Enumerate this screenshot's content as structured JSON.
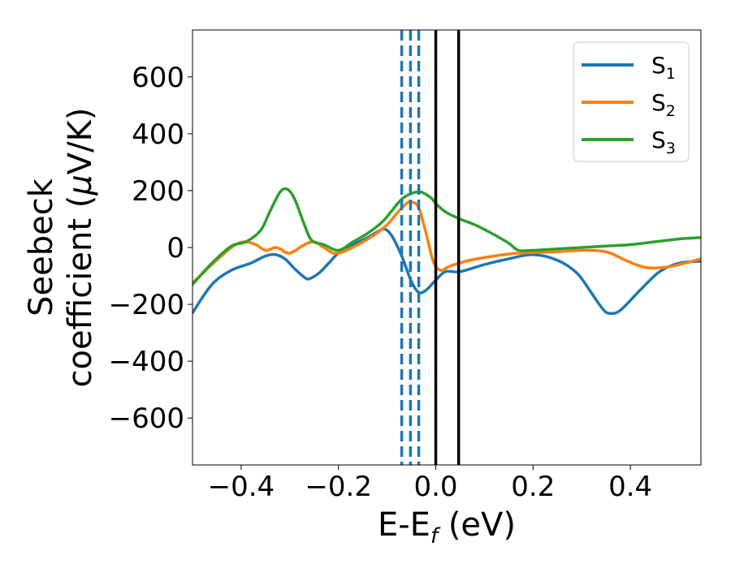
{
  "chart_data": {
    "type": "line",
    "xlabel": {
      "main": "E-E",
      "sub": "f",
      "unit": " (eV)"
    },
    "ylabel": {
      "line1": "Seebeck",
      "line2_text": "coefficient  (",
      "line2_mu": "μ",
      "line2_unit": "V/K)"
    },
    "xlim": [
      -0.5,
      0.545
    ],
    "ylim": [
      -765,
      765
    ],
    "x_ticks": [
      -0.4,
      -0.2,
      0.0,
      0.2,
      0.4
    ],
    "x_tick_labels": [
      "−0.4",
      "−0.2",
      "0.0",
      "0.2",
      "0.4"
    ],
    "y_ticks": [
      600,
      400,
      200,
      0,
      -200,
      -400,
      -600
    ],
    "y_tick_labels": [
      "600",
      "400",
      "200",
      "0",
      "−200",
      "−400",
      "−600"
    ],
    "grid": false,
    "legend_position": "top-right",
    "series": [
      {
        "name": "S",
        "sub": "1",
        "color": "#1f77b4",
        "points": [
          [
            -0.5,
            -230
          ],
          [
            -0.46,
            -130
          ],
          [
            -0.42,
            -80
          ],
          [
            -0.38,
            -55
          ],
          [
            -0.35,
            -30
          ],
          [
            -0.33,
            -25
          ],
          [
            -0.31,
            -40
          ],
          [
            -0.29,
            -75
          ],
          [
            -0.27,
            -105
          ],
          [
            -0.26,
            -110
          ],
          [
            -0.24,
            -90
          ],
          [
            -0.22,
            -55
          ],
          [
            -0.2,
            -20
          ],
          [
            -0.17,
            10
          ],
          [
            -0.14,
            35
          ],
          [
            -0.12,
            55
          ],
          [
            -0.105,
            65
          ],
          [
            -0.09,
            40
          ],
          [
            -0.07,
            -30
          ],
          [
            -0.05,
            -120
          ],
          [
            -0.035,
            -158
          ],
          [
            -0.02,
            -150
          ],
          [
            0.0,
            -115
          ],
          [
            0.02,
            -85
          ],
          [
            0.05,
            -85
          ],
          [
            0.1,
            -60
          ],
          [
            0.15,
            -40
          ],
          [
            0.2,
            -25
          ],
          [
            0.25,
            -45
          ],
          [
            0.29,
            -90
          ],
          [
            0.32,
            -160
          ],
          [
            0.345,
            -220
          ],
          [
            0.36,
            -232
          ],
          [
            0.38,
            -220
          ],
          [
            0.42,
            -150
          ],
          [
            0.46,
            -85
          ],
          [
            0.5,
            -55
          ],
          [
            0.545,
            -48
          ]
        ]
      },
      {
        "name": "S",
        "sub": "2",
        "color": "#ff7f0e",
        "points": [
          [
            -0.5,
            -125
          ],
          [
            -0.46,
            -60
          ],
          [
            -0.42,
            0
          ],
          [
            -0.395,
            20
          ],
          [
            -0.37,
            10
          ],
          [
            -0.35,
            -10
          ],
          [
            -0.33,
            0
          ],
          [
            -0.32,
            -5
          ],
          [
            -0.3,
            -20
          ],
          [
            -0.27,
            10
          ],
          [
            -0.25,
            20
          ],
          [
            -0.23,
            0
          ],
          [
            -0.21,
            -20
          ],
          [
            -0.19,
            -15
          ],
          [
            -0.16,
            10
          ],
          [
            -0.13,
            40
          ],
          [
            -0.1,
            80
          ],
          [
            -0.08,
            120
          ],
          [
            -0.06,
            155
          ],
          [
            -0.05,
            160
          ],
          [
            -0.035,
            140
          ],
          [
            -0.02,
            50
          ],
          [
            -0.005,
            -50
          ],
          [
            0.01,
            -80
          ],
          [
            0.03,
            -65
          ],
          [
            0.07,
            -45
          ],
          [
            0.12,
            -30
          ],
          [
            0.17,
            -20
          ],
          [
            0.25,
            -15
          ],
          [
            0.3,
            -10
          ],
          [
            0.35,
            -15
          ],
          [
            0.39,
            -45
          ],
          [
            0.43,
            -70
          ],
          [
            0.47,
            -70
          ],
          [
            0.5,
            -60
          ],
          [
            0.545,
            -40
          ]
        ]
      },
      {
        "name": "S",
        "sub": "3",
        "color": "#2ca02c",
        "points": [
          [
            -0.5,
            -130
          ],
          [
            -0.46,
            -55
          ],
          [
            -0.42,
            5
          ],
          [
            -0.39,
            20
          ],
          [
            -0.36,
            60
          ],
          [
            -0.34,
            130
          ],
          [
            -0.32,
            195
          ],
          [
            -0.305,
            205
          ],
          [
            -0.29,
            170
          ],
          [
            -0.27,
            80
          ],
          [
            -0.255,
            25
          ],
          [
            -0.23,
            10
          ],
          [
            -0.2,
            -10
          ],
          [
            -0.17,
            20
          ],
          [
            -0.14,
            50
          ],
          [
            -0.11,
            90
          ],
          [
            -0.09,
            130
          ],
          [
            -0.07,
            170
          ],
          [
            -0.05,
            190
          ],
          [
            -0.03,
            195
          ],
          [
            -0.01,
            175
          ],
          [
            0.0,
            155
          ],
          [
            0.02,
            125
          ],
          [
            0.05,
            100
          ],
          [
            0.08,
            80
          ],
          [
            0.12,
            45
          ],
          [
            0.15,
            15
          ],
          [
            0.17,
            -10
          ],
          [
            0.2,
            -10
          ],
          [
            0.25,
            -5
          ],
          [
            0.3,
            0
          ],
          [
            0.35,
            5
          ],
          [
            0.4,
            10
          ],
          [
            0.45,
            20
          ],
          [
            0.5,
            30
          ],
          [
            0.545,
            35
          ]
        ]
      }
    ],
    "vertical_lines": [
      {
        "x": -0.07,
        "style": "dashed",
        "color": "#1f77b4"
      },
      {
        "x": -0.052,
        "style": "dashed",
        "color": "#1f77b4"
      },
      {
        "x": -0.035,
        "style": "dashed",
        "color": "#1f77b4"
      },
      {
        "x": 0.0,
        "style": "solid",
        "color": "#000000"
      },
      {
        "x": 0.047,
        "style": "solid",
        "color": "#000000"
      }
    ]
  }
}
